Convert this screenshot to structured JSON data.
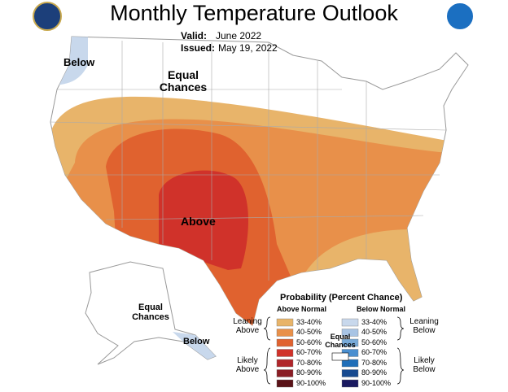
{
  "header": {
    "title": "Monthly Temperature Outlook",
    "valid_label": "Valid:",
    "valid": "June 2022",
    "issued_label": "Issued:",
    "issued": "May 19, 2022"
  },
  "map_labels": {
    "northwest": "Below",
    "equal_chances": "Equal Chances",
    "above": "Above",
    "alaska_equal_chances": "Equal Chances",
    "alaska_below": "Below"
  },
  "legend": {
    "title": "Probability (Percent Chance)",
    "above_heading": "Above Normal",
    "below_heading": "Below Normal",
    "leaning_above": "Leaning Above",
    "likely_above": "Likely Above",
    "leaning_below": "Leaning Below",
    "likely_below": "Likely Below",
    "equal_chances": "Equal Chances",
    "above": [
      {
        "range": "33-40%",
        "color": "#e8b46a"
      },
      {
        "range": "40-50%",
        "color": "#e8904a"
      },
      {
        "range": "50-60%",
        "color": "#e0622f"
      },
      {
        "range": "60-70%",
        "color": "#d0322a"
      },
      {
        "range": "70-80%",
        "color": "#b0262a"
      },
      {
        "range": "80-90%",
        "color": "#8a1d24"
      },
      {
        "range": "90-100%",
        "color": "#5a1218"
      }
    ],
    "below": [
      {
        "range": "33-40%",
        "color": "#c8d8ec"
      },
      {
        "range": "40-50%",
        "color": "#a8c4e4"
      },
      {
        "range": "50-60%",
        "color": "#78aad8"
      },
      {
        "range": "60-70%",
        "color": "#4a8fd0"
      },
      {
        "range": "70-80%",
        "color": "#1f6eb8"
      },
      {
        "range": "80-90%",
        "color": "#174a90"
      },
      {
        "range": "90-100%",
        "color": "#1a1a60"
      }
    ]
  }
}
